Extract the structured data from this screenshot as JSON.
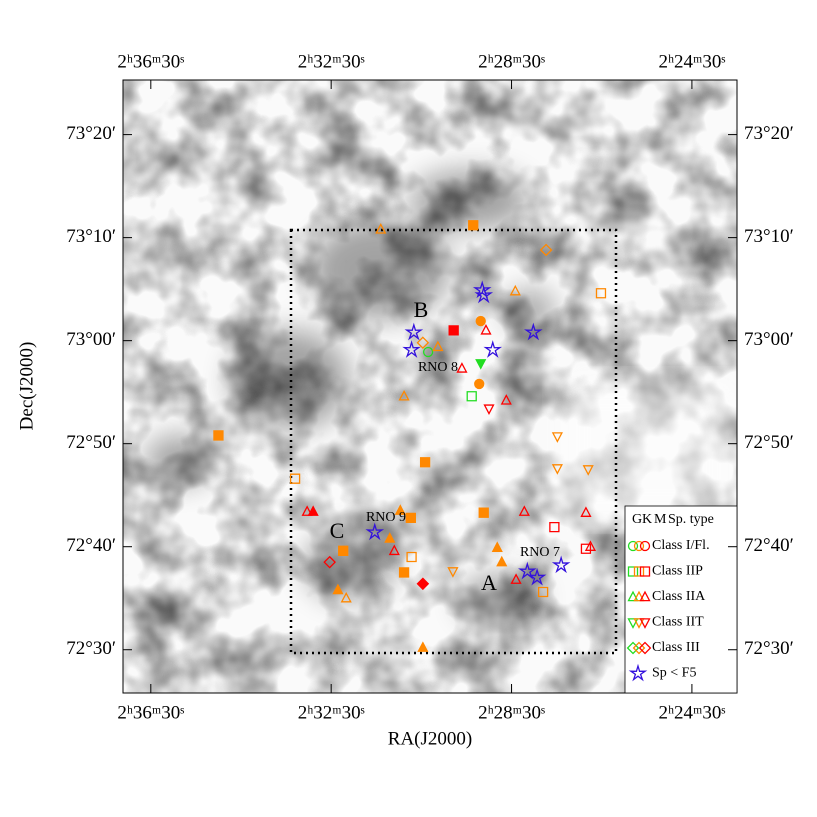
{
  "chart_data": {
    "type": "scatter",
    "xlabel": "RA(J2000)",
    "ylabel": "Dec(J2000)",
    "xlim": [
      9427,
      8610
    ],
    "ylim": [
      4345.8,
      4405.3
    ],
    "xticks": [
      {
        "value": 9390,
        "label": "2ʰ36ᵐ30ˢ"
      },
      {
        "value": 9150,
        "label": "2ʰ32ᵐ30ˢ"
      },
      {
        "value": 8910,
        "label": "2ʰ28ᵐ30ˢ"
      },
      {
        "value": 8670,
        "label": "2ʰ24ᵐ30ˢ"
      }
    ],
    "yticks": [
      {
        "value": 4400,
        "label": "73°20′"
      },
      {
        "value": 4390,
        "label": "73°10′"
      },
      {
        "value": 4380,
        "label": "73°00′"
      },
      {
        "value": 4370,
        "label": "72°50′"
      },
      {
        "value": 4360,
        "label": "72°40′"
      },
      {
        "value": 4350,
        "label": "72°30′"
      }
    ],
    "annotations": [
      "B",
      "C",
      "A",
      "RNO 8",
      "RNO 9",
      "RNO 7"
    ],
    "legend_title": "Sp. type",
    "spectral_types": [
      {
        "label": "G",
        "color": "#22dd22"
      },
      {
        "label": "K",
        "color": "#ff8800"
      },
      {
        "label": "M",
        "color": "#ff0000"
      }
    ],
    "series": [
      {
        "name": "Class I/Fl.",
        "marker": "circle",
        "x": [
          8951,
          8953,
          9021
        ],
        "y": [
          4381.9,
          4375.8,
          4378.9
        ],
        "colors": [
          "#ff8800",
          "#ff8800",
          "#22dd22"
        ],
        "filled": [
          true,
          true,
          false
        ]
      },
      {
        "name": "Class IIP",
        "marker": "square",
        "x": [
          8987,
          8961,
          9300,
          9025,
          8947,
          9134,
          9053,
          9044,
          8791,
          9198,
          8868,
          9043,
          8853,
          8811,
          8963
        ],
        "y": [
          4381.0,
          4391.2,
          4370.8,
          4368.2,
          4363.3,
          4359.6,
          4357.5,
          4362.8,
          4384.6,
          4366.6,
          4355.6,
          4359.0,
          4361.9,
          4359.8,
          4374.6
        ],
        "colors": [
          "#ff0000",
          "#ff8800",
          "#ff8800",
          "#ff8800",
          "#ff8800",
          "#ff8800",
          "#ff8800",
          "#ff8800",
          "#ff8800",
          "#ff8800",
          "#ff8800",
          "#ff8800",
          "#ff0000",
          "#ff0000",
          "#22dd22"
        ],
        "filled": [
          true,
          true,
          true,
          true,
          true,
          true,
          true,
          true,
          false,
          false,
          false,
          false,
          false,
          false,
          false
        ]
      },
      {
        "name": "Class IIA",
        "marker": "triangle-up",
        "x": [
          9084,
          8905,
          9008,
          9053,
          9130,
          9028,
          9141,
          9072,
          8929,
          9058,
          8923,
          8944,
          8976,
          8917,
          8893,
          8811,
          9066,
          8904,
          9182,
          8805,
          9174
        ],
        "y": [
          4390.8,
          4384.8,
          4379.4,
          4374.6,
          4355.0,
          4350.2,
          4355.8,
          4360.8,
          4359.9,
          4363.5,
          4358.5,
          4381.0,
          4377.3,
          4374.2,
          4363.4,
          4363.3,
          4359.6,
          4356.8,
          4363.4,
          4360.0,
          4363.4
        ],
        "colors": [
          "#ff8800",
          "#ff8800",
          "#ff8800",
          "#ff8800",
          "#ff8800",
          "#ff8800",
          "#ff8800",
          "#ff8800",
          "#ff8800",
          "#ff8800",
          "#ff8800",
          "#ff0000",
          "#ff0000",
          "#ff0000",
          "#ff0000",
          "#ff0000",
          "#ff0000",
          "#ff0000",
          "#ff0000",
          "#ff0000",
          "#ff0000"
        ],
        "filled": [
          false,
          false,
          false,
          false,
          false,
          true,
          true,
          true,
          true,
          true,
          true,
          false,
          false,
          false,
          false,
          false,
          false,
          false,
          false,
          false,
          true
        ]
      },
      {
        "name": "Class IIT",
        "marker": "triangle-down",
        "x": [
          8951,
          8940,
          8849,
          8849,
          8808,
          8988
        ],
        "y": [
          4377.8,
          4373.4,
          4370.7,
          4367.6,
          4367.5,
          4357.6
        ],
        "colors": [
          "#22dd22",
          "#ff0000",
          "#ff8800",
          "#ff8800",
          "#ff8800",
          "#ff8800"
        ],
        "filled": [
          true,
          false,
          false,
          false,
          false,
          false
        ]
      },
      {
        "name": "Class III",
        "marker": "diamond",
        "x": [
          8864,
          9028,
          9028,
          9152
        ],
        "y": [
          4388.8,
          4379.8,
          4356.4,
          4358.5
        ],
        "colors": [
          "#ff8800",
          "#ff8800",
          "#ff0000",
          "#ff0000"
        ],
        "filled": [
          false,
          false,
          true,
          false
        ]
      },
      {
        "name": "Sp < F5",
        "marker": "star",
        "color": "#3311dd",
        "x": [
          8949,
          8947,
          8881,
          9040,
          9043,
          8935,
          9092,
          8889,
          8876,
          8844
        ],
        "y": [
          4384.9,
          4384.4,
          4380.8,
          4380.8,
          4379.1,
          4379.1,
          4361.4,
          4357.6,
          4357.0,
          4358.2
        ]
      }
    ]
  }
}
